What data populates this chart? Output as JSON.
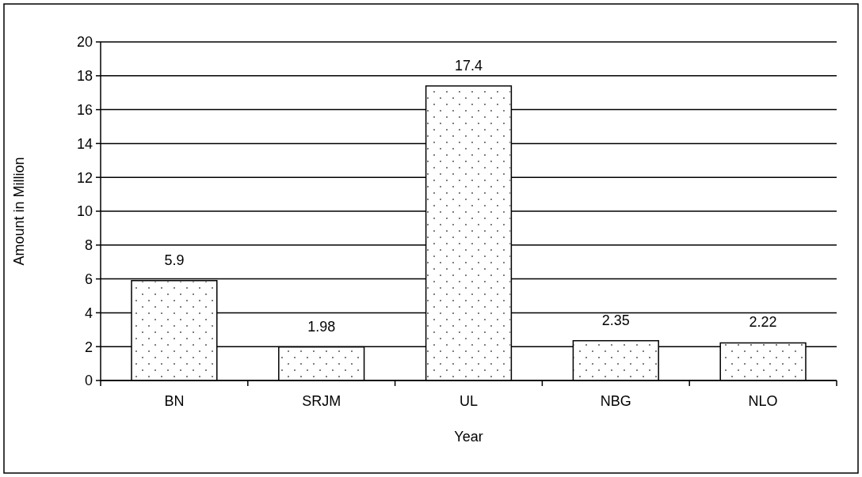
{
  "chart_data": {
    "type": "bar",
    "xlabel": "Year",
    "ylabel": "Amount in Million",
    "categories": [
      "BN",
      "SRJM",
      "UL",
      "NBG",
      "NLO"
    ],
    "values": [
      5.9,
      1.98,
      17.4,
      2.35,
      2.22
    ],
    "color": "#ffffff",
    "ylim": [
      0,
      20
    ],
    "yticks": [
      0,
      2,
      4,
      6,
      8,
      10,
      12,
      14,
      16,
      18,
      20
    ],
    "grid": "y",
    "data_labels": true
  }
}
